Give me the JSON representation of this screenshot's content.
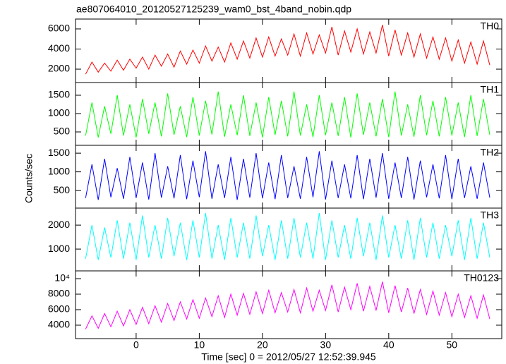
{
  "title": "ae807064010_20120527125239_wam0_bst_4band_nobin.qdp",
  "ylabel": "Counts/sec",
  "xlabel": "Time [sec] 0 = 2012/05/27 12:52:39.945",
  "xlim": [
    -9.6,
    57.9
  ],
  "xticks": [
    0,
    10,
    20,
    30,
    40,
    50
  ],
  "chart_data": [
    {
      "type": "line",
      "name": "TH0",
      "color": "#ff0000",
      "ylim": [
        670,
        6980
      ],
      "yticks": [
        2000,
        4000,
        6000
      ],
      "x": [
        -8,
        -7,
        -6,
        -5,
        -4,
        -3,
        -2,
        -1,
        0,
        1,
        2,
        3,
        4,
        5,
        6,
        7,
        8,
        9,
        10,
        11,
        12,
        13,
        14,
        15,
        16,
        17,
        18,
        19,
        20,
        21,
        22,
        23,
        24,
        25,
        26,
        27,
        28,
        29,
        30,
        31,
        32,
        33,
        34,
        35,
        36,
        37,
        38,
        39,
        40,
        41,
        42,
        43,
        44,
        45,
        46,
        47,
        48,
        49,
        50,
        51,
        52,
        53,
        54,
        55,
        56
      ],
      "values": [
        1500,
        2700,
        1700,
        2600,
        1800,
        2900,
        1900,
        3000,
        2100,
        3200,
        2000,
        3400,
        2300,
        3500,
        2200,
        3800,
        2500,
        3900,
        2600,
        4300,
        2800,
        4200,
        2700,
        4600,
        3000,
        4800,
        3100,
        5100,
        3200,
        5200,
        3300,
        5000,
        3400,
        5500,
        3300,
        5600,
        3500,
        5400,
        3600,
        6200,
        3400,
        5800,
        3700,
        6000,
        3500,
        5700,
        3600,
        6400,
        3300,
        5900,
        3400,
        5600,
        3200,
        5500,
        3100,
        5200,
        3000,
        5100,
        2800,
        4900,
        2600,
        4700,
        2500,
        4800,
        2400
      ]
    },
    {
      "type": "line",
      "name": "TH1",
      "color": "#00ff00",
      "ylim": [
        135,
        1846
      ],
      "yticks": [
        500,
        1000,
        1500
      ],
      "x": [
        -8,
        -7,
        -6,
        -5,
        -4,
        -3,
        -2,
        -1,
        0,
        1,
        2,
        3,
        4,
        5,
        6,
        7,
        8,
        9,
        10,
        11,
        12,
        13,
        14,
        15,
        16,
        17,
        18,
        19,
        20,
        21,
        22,
        23,
        24,
        25,
        26,
        27,
        28,
        29,
        30,
        31,
        32,
        33,
        34,
        35,
        36,
        37,
        38,
        39,
        40,
        41,
        42,
        43,
        44,
        45,
        46,
        47,
        48,
        49,
        50,
        51,
        52,
        53,
        54,
        55,
        56
      ],
      "values": [
        400,
        1300,
        350,
        1200,
        450,
        1500,
        400,
        1250,
        350,
        1400,
        450,
        1300,
        380,
        1550,
        420,
        1200,
        360,
        1450,
        400,
        1350,
        430,
        1600,
        370,
        1250,
        410,
        1500,
        390,
        1300,
        350,
        1450,
        420,
        1350,
        380,
        1600,
        400,
        1250,
        360,
        1500,
        410,
        1300,
        390,
        1450,
        350,
        1550,
        420,
        1300,
        380,
        1400,
        360,
        1600,
        400,
        1250,
        370,
        1500,
        410,
        1350,
        380,
        1450,
        400,
        1300,
        360,
        1500,
        390,
        1400,
        420
      ]
    },
    {
      "type": "line",
      "name": "TH2",
      "color": "#0000ff",
      "ylim": [
        30,
        1710
      ],
      "yticks": [
        500,
        1000,
        1500
      ],
      "x": [
        -8,
        -7,
        -6,
        -5,
        -4,
        -3,
        -2,
        -1,
        0,
        1,
        2,
        3,
        4,
        5,
        6,
        7,
        8,
        9,
        10,
        11,
        12,
        13,
        14,
        15,
        16,
        17,
        18,
        19,
        20,
        21,
        22,
        23,
        24,
        25,
        26,
        27,
        28,
        29,
        30,
        31,
        32,
        33,
        34,
        35,
        36,
        37,
        38,
        39,
        40,
        41,
        42,
        43,
        44,
        45,
        46,
        47,
        48,
        49,
        50,
        51,
        52,
        53,
        54,
        55,
        56
      ],
      "values": [
        300,
        1200,
        250,
        1350,
        320,
        1100,
        280,
        1400,
        300,
        1250,
        260,
        1500,
        310,
        1150,
        290,
        1450,
        270,
        1300,
        320,
        1550,
        280,
        1200,
        300,
        1400,
        250,
        1350,
        310,
        1500,
        290,
        1250,
        270,
        1450,
        300,
        1150,
        280,
        1400,
        320,
        1550,
        260,
        1300,
        300,
        1200,
        290,
        1450,
        270,
        1350,
        310,
        1500,
        280,
        1250,
        300,
        1400,
        260,
        1300,
        320,
        1200,
        290,
        1450,
        270,
        1350,
        300,
        1150,
        280,
        1250,
        310
      ]
    },
    {
      "type": "line",
      "name": "TH3",
      "color": "#00ffff",
      "ylim": [
        90,
        2710
      ],
      "yticks": [
        1000,
        2000
      ],
      "x": [
        -8,
        -7,
        -6,
        -5,
        -4,
        -3,
        -2,
        -1,
        0,
        1,
        2,
        3,
        4,
        5,
        6,
        7,
        8,
        9,
        10,
        11,
        12,
        13,
        14,
        15,
        16,
        17,
        18,
        19,
        20,
        21,
        22,
        23,
        24,
        25,
        26,
        27,
        28,
        29,
        30,
        31,
        32,
        33,
        34,
        35,
        36,
        37,
        38,
        39,
        40,
        41,
        42,
        43,
        44,
        45,
        46,
        47,
        48,
        49,
        50,
        51,
        52,
        53,
        54,
        55,
        56
      ],
      "values": [
        600,
        2000,
        550,
        1900,
        650,
        2200,
        600,
        2100,
        550,
        2400,
        650,
        2000,
        600,
        2300,
        700,
        2100,
        550,
        2200,
        650,
        2500,
        600,
        2000,
        550,
        2300,
        650,
        2100,
        600,
        2400,
        700,
        2000,
        550,
        2200,
        600,
        2300,
        650,
        2100,
        600,
        2500,
        550,
        2200,
        650,
        2000,
        600,
        2300,
        700,
        2100,
        550,
        2400,
        650,
        2000,
        600,
        2200,
        550,
        2300,
        650,
        2100,
        600,
        2000,
        700,
        2200,
        550,
        2300,
        600,
        2100,
        650
      ]
    },
    {
      "type": "line",
      "name": "TH0123",
      "color": "#ff00ff",
      "ylim": [
        2270,
        11000
      ],
      "yticks": [
        4000,
        6000,
        8000,
        {
          "value": 10000,
          "label": "10⁴"
        }
      ],
      "x": [
        -8,
        -7,
        -6,
        -5,
        -4,
        -3,
        -2,
        -1,
        0,
        1,
        2,
        3,
        4,
        5,
        6,
        7,
        8,
        9,
        10,
        11,
        12,
        13,
        14,
        15,
        16,
        17,
        18,
        19,
        20,
        21,
        22,
        23,
        24,
        25,
        26,
        27,
        28,
        29,
        30,
        31,
        32,
        33,
        34,
        35,
        36,
        37,
        38,
        39,
        40,
        41,
        42,
        43,
        44,
        45,
        46,
        47,
        48,
        49,
        50,
        51,
        52,
        53,
        54,
        55,
        56
      ],
      "values": [
        3500,
        5200,
        3600,
        5500,
        3800,
        5800,
        3900,
        6000,
        4100,
        6300,
        4200,
        6500,
        4400,
        6800,
        4600,
        7000,
        4800,
        7300,
        4900,
        7500,
        5100,
        7800,
        5000,
        8000,
        5300,
        8100,
        5400,
        8300,
        5500,
        8500,
        5600,
        8200,
        5700,
        8600,
        5600,
        8800,
        5800,
        8500,
        5900,
        9200,
        5700,
        8900,
        6000,
        9400,
        5800,
        9000,
        5900,
        9600,
        5600,
        9100,
        5700,
        8800,
        5500,
        8600,
        5400,
        8400,
        5300,
        8200,
        5100,
        8000,
        5000,
        7800,
        4900,
        7900,
        4800
      ]
    }
  ]
}
